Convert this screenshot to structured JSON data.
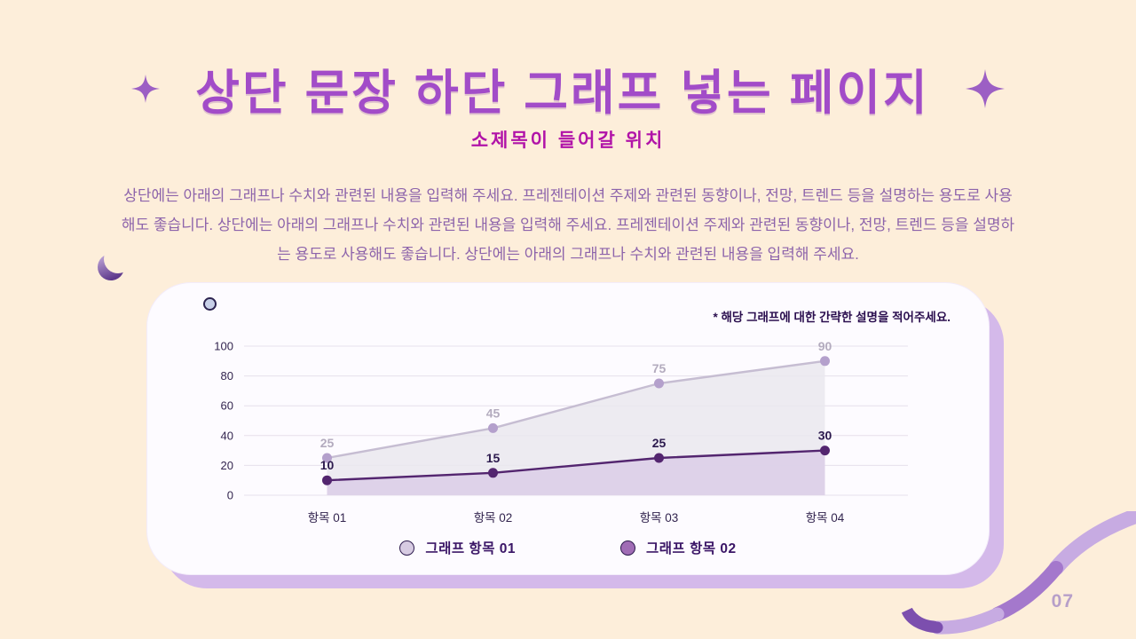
{
  "page": {
    "title": "상단 문장 하단 그래프 넣는 페이지",
    "subtitle": "소제목이 들어갈 위치",
    "body": "상단에는 아래의 그래프나 수치와 관련된 내용을 입력해 주세요. 프레젠테이션 주제와 관련된 동향이나, 전망, 트렌드 등을 설명하는 용도로 사용해도 좋습니다.  상단에는 아래의 그래프나 수치와 관련된 내용을 입력해 주세요.  프레젠테이션 주제와 관련된 동향이나, 전망, 트렌드 등을 설명하는 용도로 사용해도 좋습니다. 상단에는 아래의 그래프나 수치와 관련된 내용을 입력해 주세요.",
    "page_number": "07"
  },
  "colors": {
    "background": "#fdeeda",
    "title": "#a24cc8",
    "subtitle": "#b113a8",
    "body_text": "#8d64ab",
    "card_background": "#fdfbff",
    "card_shadow": "#d4b9ea",
    "note_text": "#2a0e4e",
    "page_number": "#b79fc9"
  },
  "chart_data": {
    "type": "line",
    "title": "",
    "note": "* 해당 그래프에 대한 간략한 설명을 적어주세요.",
    "categories": [
      "항목 01",
      "항목 02",
      "항목 03",
      "항목 04"
    ],
    "series": [
      {
        "name": "그래프 항목 01",
        "values": [
          25,
          45,
          75,
          90
        ],
        "color": "#c6bdd2",
        "marker": "#b4a0cc",
        "fill": "#eae7ee",
        "fill_opacity": 0.85,
        "label_color": "#b3abbe",
        "legend_marker": "#d7cbe2"
      },
      {
        "name": "그래프 항목 02",
        "values": [
          10,
          15,
          25,
          30
        ],
        "color": "#53256f",
        "marker": "#53256f",
        "fill": "#dbcfe8",
        "fill_opacity": 0.9,
        "label_color": "#2c1a4e",
        "legend_marker": "#a06cb5"
      }
    ],
    "xlabel": "",
    "ylabel": "",
    "ylim": [
      0,
      100
    ],
    "yticks": [
      0,
      20,
      40,
      60,
      80,
      100
    ],
    "grid": true,
    "legend_position": "bottom",
    "style": {
      "grid_color": "#e6e0ec",
      "axis_color": "#33254f"
    }
  }
}
